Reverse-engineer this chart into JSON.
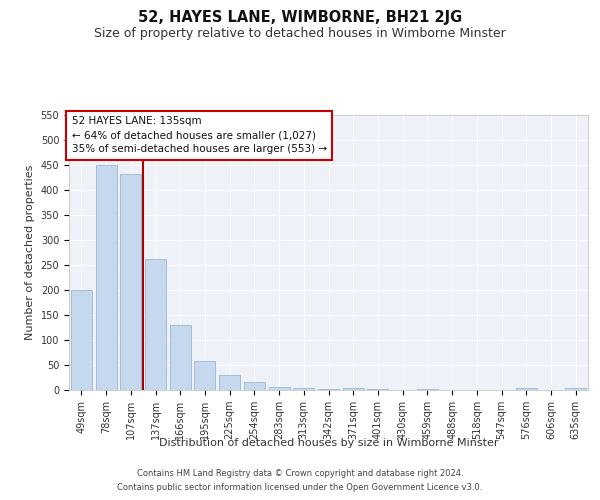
{
  "title": "52, HAYES LANE, WIMBORNE, BH21 2JG",
  "subtitle": "Size of property relative to detached houses in Wimborne Minster",
  "xlabel": "Distribution of detached houses by size in Wimborne Minster",
  "ylabel": "Number of detached properties",
  "footnote1": "Contains HM Land Registry data © Crown copyright and database right 2024.",
  "footnote2": "Contains public sector information licensed under the Open Government Licence v3.0.",
  "categories": [
    "49sqm",
    "78sqm",
    "107sqm",
    "137sqm",
    "166sqm",
    "195sqm",
    "225sqm",
    "254sqm",
    "283sqm",
    "313sqm",
    "342sqm",
    "371sqm",
    "401sqm",
    "430sqm",
    "459sqm",
    "488sqm",
    "518sqm",
    "547sqm",
    "576sqm",
    "606sqm",
    "635sqm"
  ],
  "values": [
    200,
    450,
    433,
    263,
    130,
    59,
    30,
    16,
    7,
    4,
    2,
    5,
    2,
    0,
    3,
    0,
    0,
    0,
    5,
    0,
    5
  ],
  "bar_color": "#c5d8ed",
  "bar_edge_color": "#8ab0cc",
  "line_color": "#aa0000",
  "box_edge_color": "#cc0000",
  "property_label": "52 HAYES LANE: 135sqm",
  "annotation_line1": "← 64% of detached houses are smaller (1,027)",
  "annotation_line2": "35% of semi-detached houses are larger (553) →",
  "ylim": [
    0,
    550
  ],
  "yticks": [
    0,
    50,
    100,
    150,
    200,
    250,
    300,
    350,
    400,
    450,
    500,
    550
  ],
  "background_color": "#eef2f8",
  "grid_color": "#ffffff",
  "title_fontsize": 10.5,
  "subtitle_fontsize": 9,
  "xlabel_fontsize": 8,
  "ylabel_fontsize": 8,
  "tick_fontsize": 7,
  "annotation_fontsize": 7.5,
  "footnote_fontsize": 6
}
